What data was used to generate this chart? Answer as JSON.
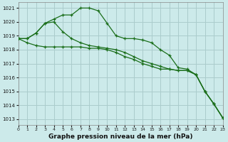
{
  "title": "Graphe pression niveau de la mer (hPa)",
  "background_color": "#cceaea",
  "grid_color": "#aacccc",
  "line_color": "#1a6e1a",
  "xlim": [
    0,
    23
  ],
  "ylim": [
    1012.6,
    1021.4
  ],
  "yticks": [
    1013,
    1014,
    1015,
    1016,
    1017,
    1018,
    1019,
    1020,
    1021
  ],
  "xticks": [
    0,
    1,
    2,
    3,
    4,
    5,
    6,
    7,
    8,
    9,
    10,
    11,
    12,
    13,
    14,
    15,
    16,
    17,
    18,
    19,
    20,
    21,
    22,
    23
  ],
  "s1": [
    1018.8,
    1018.8,
    1019.2,
    1019.9,
    1020.2,
    1020.5,
    1020.5,
    1021.0,
    1021.0,
    1020.8,
    1019.9,
    1019.0,
    1018.8,
    1018.8,
    1018.7,
    1018.5,
    1018.0,
    1017.6,
    1016.7,
    1016.6,
    1016.2,
    1015.0,
    1014.1,
    1013.1
  ],
  "s2": [
    1018.8,
    1018.8,
    1019.2,
    1019.9,
    1020.0,
    1019.3,
    1018.8,
    1018.5,
    1018.3,
    1018.2,
    1018.1,
    1018.0,
    1017.8,
    1017.5,
    1017.2,
    1017.0,
    1016.8,
    1016.6,
    1016.5,
    1016.5,
    1016.2,
    1015.0,
    1014.1,
    1013.1
  ],
  "s3": [
    1018.8,
    1018.5,
    1018.3,
    1018.2,
    1018.2,
    1018.2,
    1018.2,
    1018.2,
    1018.1,
    1018.1,
    1018.0,
    1017.8,
    1017.5,
    1017.3,
    1017.0,
    1016.8,
    1016.6,
    1016.6,
    1016.5,
    1016.5,
    1016.2,
    1015.0,
    1014.1,
    1013.1
  ]
}
